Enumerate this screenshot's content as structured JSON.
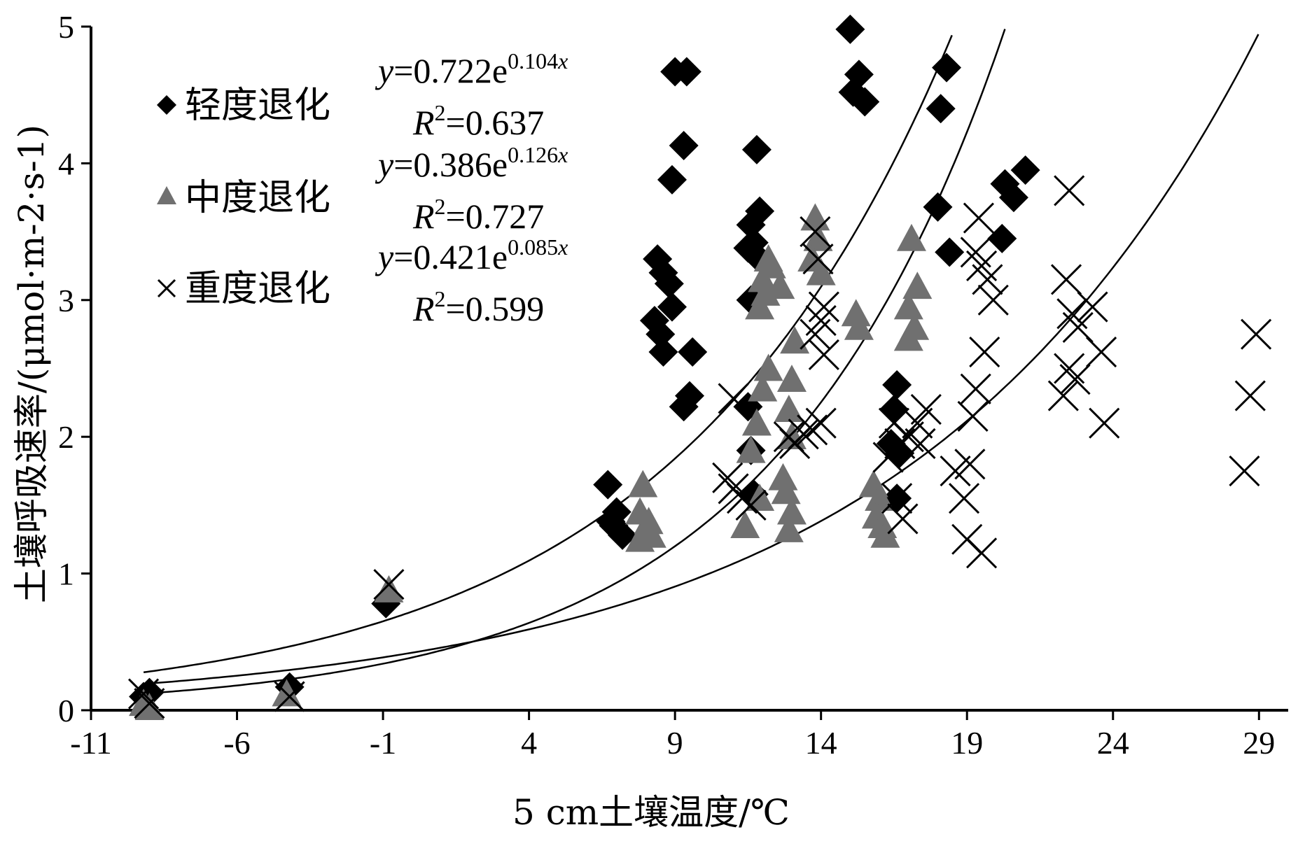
{
  "chart_data": {
    "type": "scatter",
    "xlabel": "5 cm土壤温度/℃",
    "ylabel": "土壤呼吸速率/(μmol·m-2·s-1)",
    "xlim": [
      -11,
      30
    ],
    "ylim": [
      0,
      5
    ],
    "xticks": [
      -11,
      -6,
      -1,
      4,
      9,
      14,
      19,
      24,
      29
    ],
    "yticks": [
      0,
      1,
      2,
      3,
      4,
      5
    ],
    "grid": false,
    "legend_position": "top-left",
    "series": [
      {
        "name": "轻度退化",
        "marker": "diamond",
        "color": "#000000",
        "equation": {
          "y": "y",
          "eq": "=0.722e",
          "exp": "0.104",
          "x": "x",
          "r2": "=0.637"
        },
        "fit": {
          "a": 0.722,
          "b": 0.104,
          "x_range": [
            -9.2,
            20.2
          ]
        },
        "points": [
          [
            -9.2,
            0.1
          ],
          [
            -9.0,
            0.13
          ],
          [
            -4.2,
            0.17
          ],
          [
            -0.9,
            0.78
          ],
          [
            6.7,
            1.65
          ],
          [
            6.9,
            1.35
          ],
          [
            7.0,
            1.45
          ],
          [
            7.2,
            1.28
          ],
          [
            6.8,
            1.38
          ],
          [
            8.4,
            3.3
          ],
          [
            8.6,
            3.2
          ],
          [
            8.8,
            3.12
          ],
          [
            8.3,
            2.85
          ],
          [
            8.5,
            2.75
          ],
          [
            8.9,
            2.95
          ],
          [
            8.6,
            2.62
          ],
          [
            9.0,
            4.67
          ],
          [
            9.4,
            4.67
          ],
          [
            9.3,
            4.13
          ],
          [
            8.9,
            3.88
          ],
          [
            9.6,
            2.62
          ],
          [
            9.5,
            2.3
          ],
          [
            9.3,
            2.22
          ],
          [
            11.8,
            4.1
          ],
          [
            11.9,
            3.65
          ],
          [
            11.6,
            3.55
          ],
          [
            11.7,
            3.42
          ],
          [
            11.5,
            3.38
          ],
          [
            11.8,
            3.32
          ],
          [
            11.6,
            3.0
          ],
          [
            11.5,
            2.22
          ],
          [
            11.6,
            1.9
          ],
          [
            11.7,
            1.58
          ],
          [
            15.0,
            4.98
          ],
          [
            15.3,
            4.65
          ],
          [
            15.1,
            4.52
          ],
          [
            15.5,
            4.45
          ],
          [
            16.6,
            2.38
          ],
          [
            16.5,
            2.2
          ],
          [
            16.4,
            1.95
          ],
          [
            16.7,
            1.88
          ],
          [
            16.6,
            1.55
          ],
          [
            18.3,
            4.7
          ],
          [
            18.1,
            4.4
          ],
          [
            18.0,
            3.68
          ],
          [
            18.4,
            3.35
          ],
          [
            20.3,
            3.85
          ],
          [
            20.6,
            3.75
          ],
          [
            21.0,
            3.95
          ],
          [
            20.2,
            3.45
          ]
        ]
      },
      {
        "name": "中度退化",
        "marker": "triangle",
        "color": "#707070",
        "equation": {
          "y": "y",
          "eq": "=0.386e",
          "exp": "0.126",
          "x": "x",
          "r2": "=0.727"
        },
        "fit": {
          "a": 0.386,
          "b": 0.126,
          "x_range": [
            -9.2,
            20.3
          ]
        },
        "points": [
          [
            -9.2,
            0.05
          ],
          [
            -9.0,
            0.02
          ],
          [
            -4.3,
            0.12
          ],
          [
            -0.8,
            0.88
          ],
          [
            7.9,
            1.65
          ],
          [
            7.8,
            1.45
          ],
          [
            8.1,
            1.38
          ],
          [
            7.8,
            1.25
          ],
          [
            8.2,
            1.28
          ],
          [
            11.4,
            1.35
          ],
          [
            11.9,
            1.55
          ],
          [
            11.6,
            1.9
          ],
          [
            11.8,
            2.1
          ],
          [
            12.0,
            2.35
          ],
          [
            12.2,
            2.5
          ],
          [
            11.9,
            2.95
          ],
          [
            12.1,
            3.05
          ],
          [
            12.0,
            3.15
          ],
          [
            12.3,
            3.25
          ],
          [
            12.2,
            3.3
          ],
          [
            12.6,
            3.1
          ],
          [
            13.1,
            2.7
          ],
          [
            13.0,
            2.42
          ],
          [
            12.9,
            2.2
          ],
          [
            13.0,
            2.0
          ],
          [
            12.7,
            1.7
          ],
          [
            12.8,
            1.6
          ],
          [
            13.0,
            1.45
          ],
          [
            12.9,
            1.32
          ],
          [
            13.8,
            3.6
          ],
          [
            13.9,
            3.45
          ],
          [
            13.7,
            3.3
          ],
          [
            14.0,
            3.2
          ],
          [
            15.2,
            2.9
          ],
          [
            15.3,
            2.8
          ],
          [
            15.8,
            1.65
          ],
          [
            16.0,
            1.55
          ],
          [
            15.9,
            1.42
          ],
          [
            16.1,
            1.35
          ],
          [
            16.2,
            1.28
          ],
          [
            17.1,
            3.45
          ],
          [
            17.3,
            3.1
          ],
          [
            17.0,
            2.95
          ],
          [
            17.2,
            2.8
          ],
          [
            17.0,
            2.72
          ]
        ]
      },
      {
        "name": "重度退化",
        "marker": "x",
        "color": "#000000",
        "equation": {
          "y": "y",
          "eq": "=0.421e",
          "exp": "0.085",
          "x": "x",
          "r2": "=0.599"
        },
        "fit": {
          "a": 0.421,
          "b": 0.085,
          "x_range": [
            -9.2,
            29.3
          ]
        },
        "points": [
          [
            -9.2,
            0.12
          ],
          [
            -9.0,
            0.05
          ],
          [
            -4.2,
            0.1
          ],
          [
            -0.8,
            0.92
          ],
          [
            10.8,
            1.7
          ],
          [
            11.0,
            1.62
          ],
          [
            11.3,
            1.55
          ],
          [
            11.6,
            1.5
          ],
          [
            11.0,
            2.28
          ],
          [
            12.9,
            2.0
          ],
          [
            13.1,
            1.95
          ],
          [
            13.4,
            2.02
          ],
          [
            13.8,
            3.5
          ],
          [
            13.9,
            3.3
          ],
          [
            14.1,
            2.95
          ],
          [
            14.0,
            2.85
          ],
          [
            13.8,
            2.75
          ],
          [
            14.1,
            2.6
          ],
          [
            14.0,
            2.1
          ],
          [
            13.7,
            2.05
          ],
          [
            16.5,
            2.1
          ],
          [
            16.7,
            1.95
          ],
          [
            16.3,
            1.85
          ],
          [
            16.6,
            1.55
          ],
          [
            16.8,
            1.4
          ],
          [
            17.3,
            2.1
          ],
          [
            17.0,
            2.0
          ],
          [
            17.6,
            2.2
          ],
          [
            17.4,
            1.95
          ],
          [
            18.6,
            1.75
          ],
          [
            18.9,
            1.55
          ],
          [
            19.1,
            1.8
          ],
          [
            19.0,
            1.25
          ],
          [
            19.5,
            1.15
          ],
          [
            19.4,
            3.6
          ],
          [
            19.3,
            3.35
          ],
          [
            19.5,
            3.25
          ],
          [
            19.7,
            3.15
          ],
          [
            19.9,
            3.0
          ],
          [
            19.6,
            2.62
          ],
          [
            19.3,
            2.35
          ],
          [
            19.2,
            2.15
          ],
          [
            22.5,
            3.8
          ],
          [
            22.4,
            3.15
          ],
          [
            22.6,
            2.9
          ],
          [
            22.8,
            2.8
          ],
          [
            23.3,
            2.95
          ],
          [
            22.5,
            2.5
          ],
          [
            22.7,
            2.42
          ],
          [
            22.3,
            2.3
          ],
          [
            23.6,
            2.62
          ],
          [
            23.7,
            2.1
          ],
          [
            28.9,
            2.75
          ],
          [
            28.7,
            2.3
          ],
          [
            28.5,
            1.75
          ]
        ]
      }
    ]
  }
}
